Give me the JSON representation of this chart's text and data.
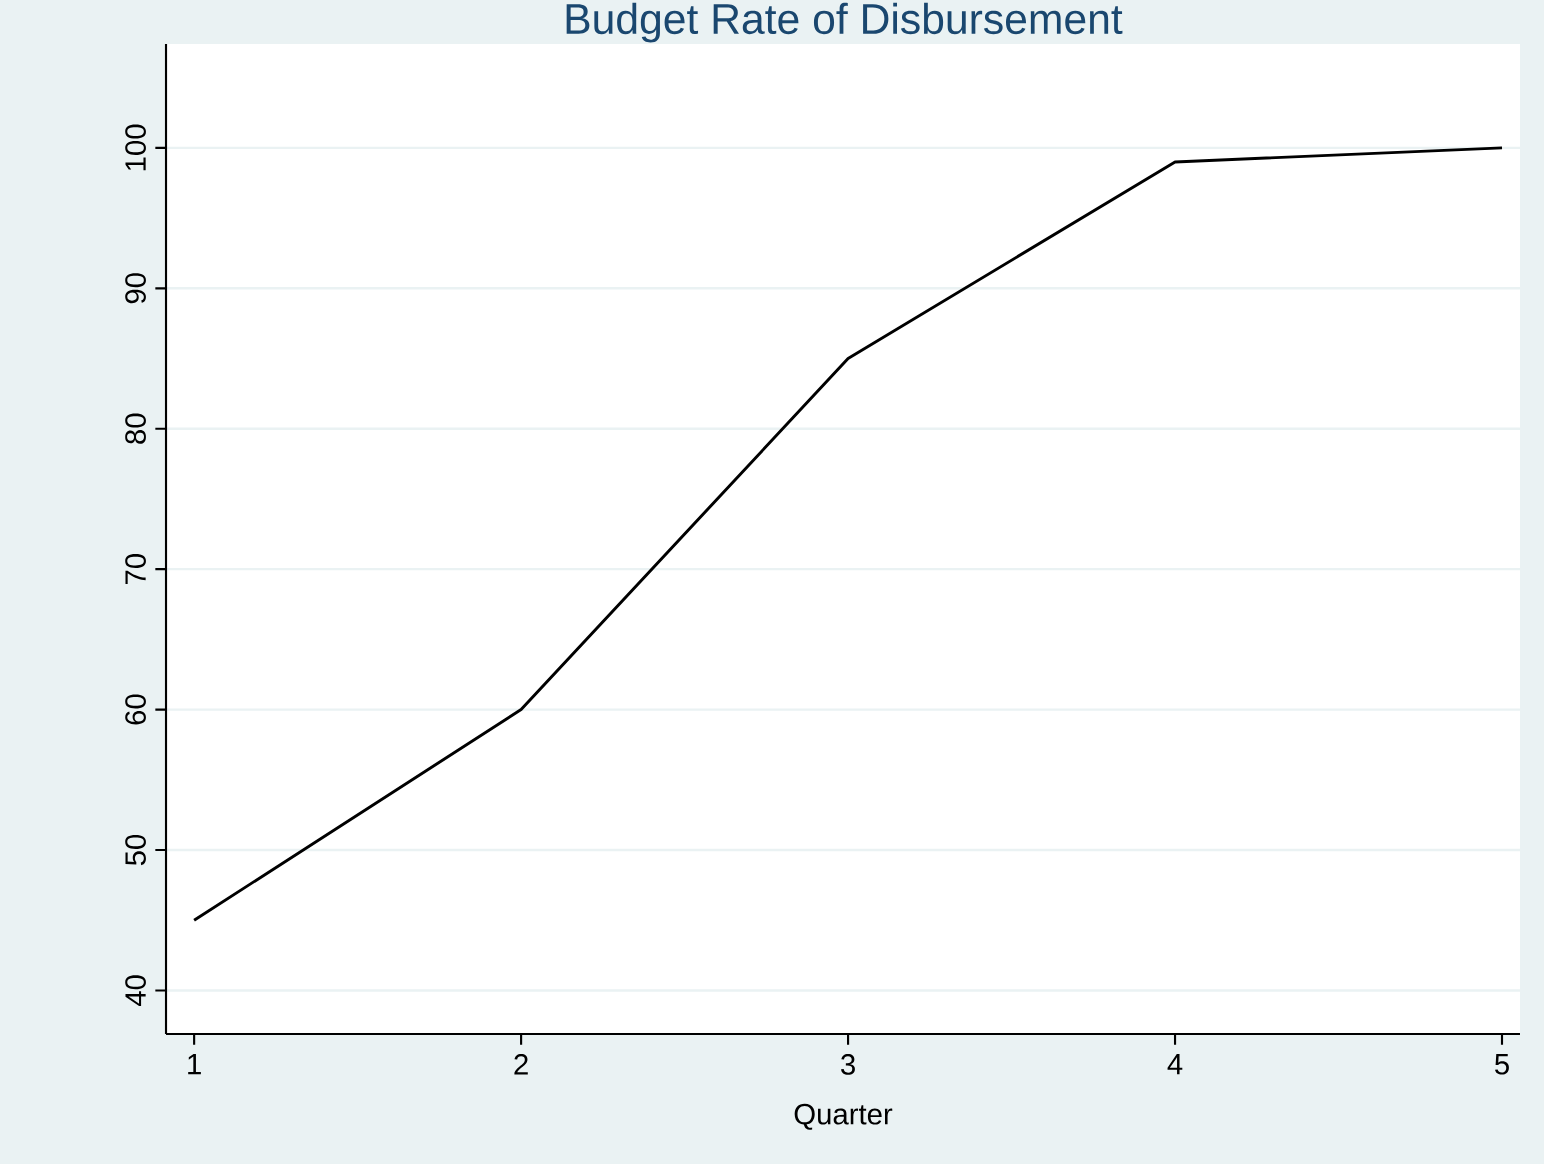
{
  "chart_data": {
    "type": "line",
    "title": "Budget Rate of Disbursement",
    "xlabel": "Quarter",
    "x": [
      1,
      2,
      3,
      4,
      5
    ],
    "series": [
      {
        "color": "#000000",
        "values": [
          45,
          60,
          85,
          99,
          100
        ]
      }
    ],
    "xlim": [
      0.914,
      5.055
    ],
    "ylim": [
      36.9,
      107.4
    ],
    "xticks": [
      1,
      2,
      3,
      4,
      5
    ],
    "yticks": [
      40,
      50,
      60,
      70,
      80,
      90,
      100
    ],
    "grid": "y",
    "marker": "none",
    "line_style": "solid"
  }
}
